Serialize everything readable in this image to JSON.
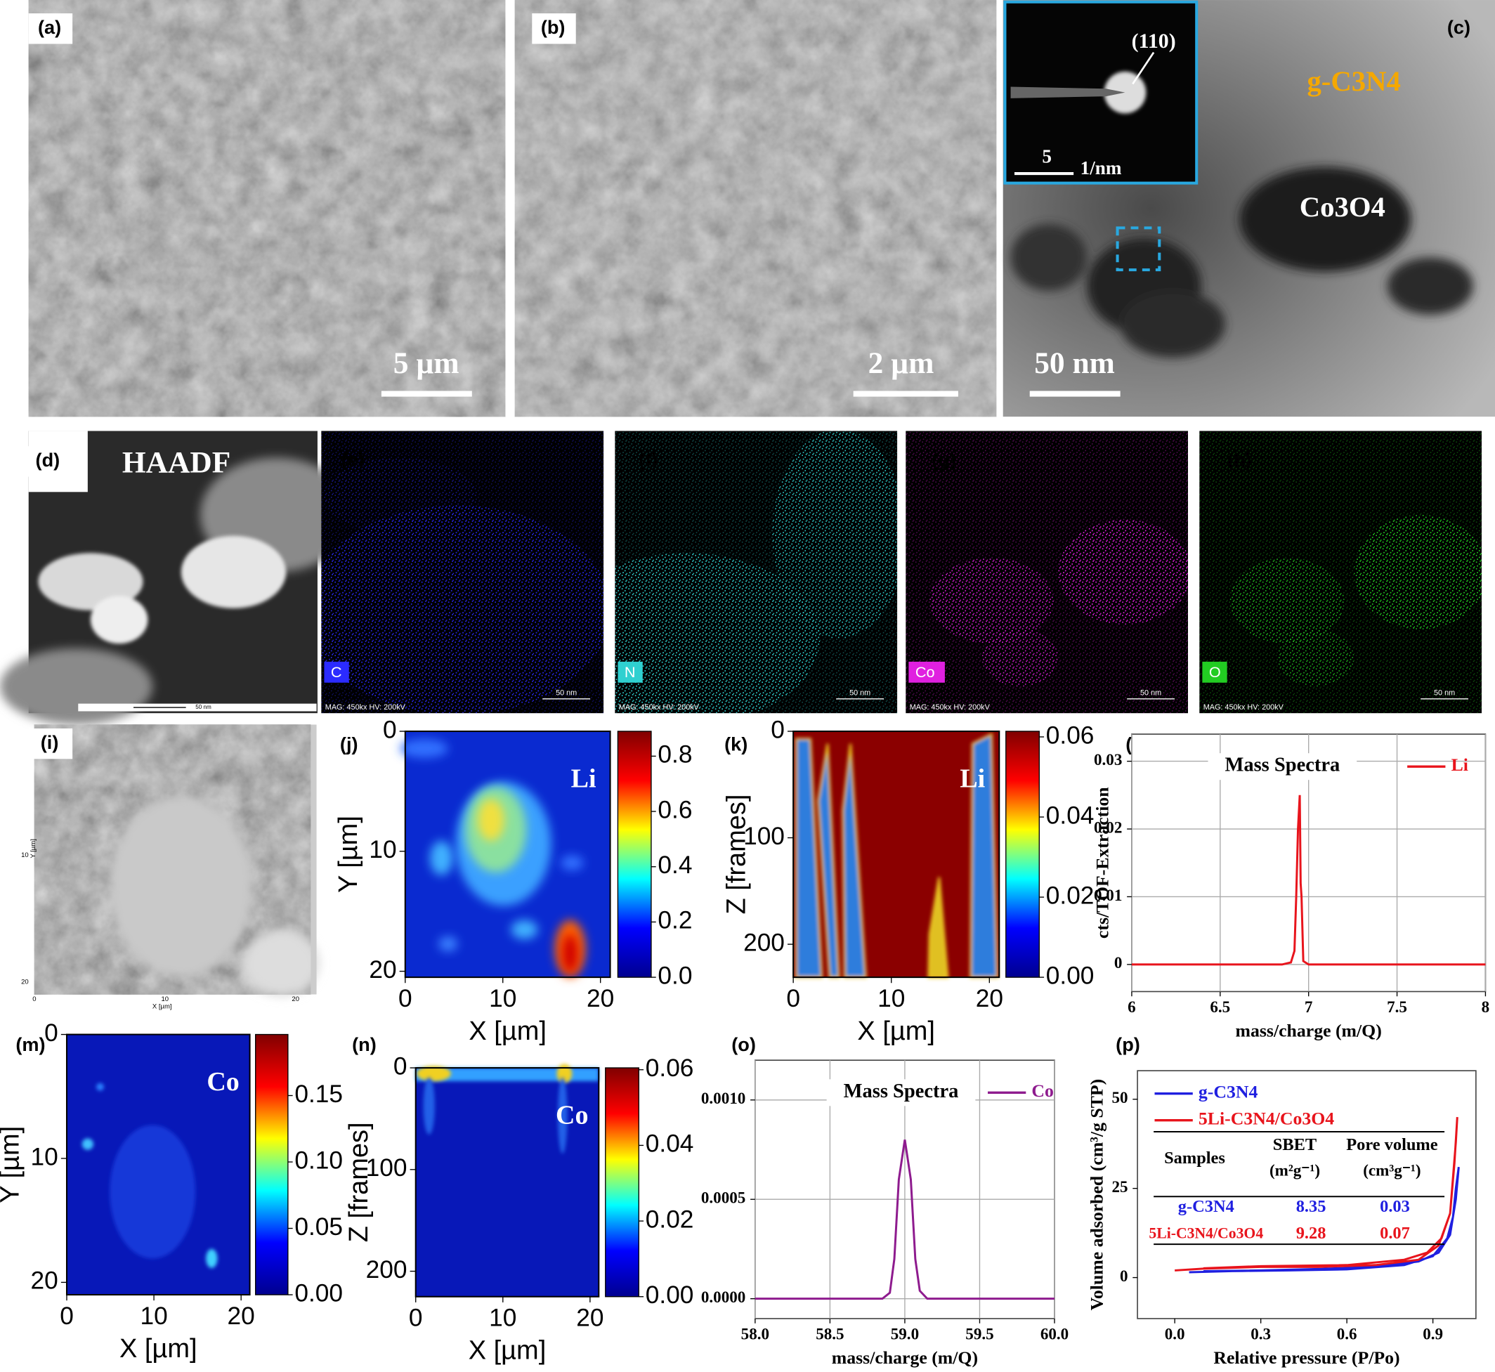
{
  "panel_labels": [
    "(a)",
    "(b)",
    "(c)",
    "(d)",
    "(e)",
    "(f)",
    "(g)",
    "(h)",
    "(i)",
    "(j)",
    "(k)",
    "(l)",
    "(m)",
    "(n)",
    "(o)",
    "(p)"
  ],
  "micrographs": {
    "a": {
      "scale_bar": "5 µm"
    },
    "b": {
      "scale_bar": "2 µm"
    },
    "c": {
      "scale_bar": "50 nm",
      "inset_scale": "5",
      "inset_unit": "1/nm",
      "spot": "(110)",
      "support": "g-C3N4",
      "particles": "Co3O4"
    },
    "d": {
      "title": "HAADF",
      "scale_bar": "50 nm"
    },
    "eds": [
      {
        "element": "C",
        "color": "#2b2bff",
        "info": "MAG: 450kx HV: 200kV",
        "scale_bar": "50 nm"
      },
      {
        "element": "N",
        "color": "#2fd0d0",
        "info": "MAG: 450kx HV: 200kV",
        "scale_bar": "50 nm"
      },
      {
        "element": "Co",
        "color": "#e020e0",
        "info": "MAG: 450kx HV: 200kV",
        "scale_bar": "50 nm"
      },
      {
        "element": "O",
        "color": "#22cc22",
        "info": "MAG: 450kx HV: 200kV",
        "scale_bar": "50 nm"
      }
    ],
    "i": {
      "xlabel": "X [µm]",
      "ylabel": "Y [µm]",
      "xticks": [
        "0",
        "10",
        "20"
      ],
      "yticks": [
        "10",
        "20"
      ]
    }
  },
  "chart_data": [
    {
      "type": "heatmap",
      "label": "Li",
      "xlabel": "X [µm]",
      "ylabel": "Y [µm]",
      "y_inverted": true,
      "xlim": [
        0,
        21
      ],
      "xticks": [
        0,
        10,
        20
      ],
      "ylim": [
        0,
        20.5
      ],
      "yticks": [
        0,
        10,
        20
      ],
      "clim": [
        0,
        0.89
      ],
      "cticks": [
        {
          "value": 0,
          "label": "0.0"
        },
        {
          "value": 0.2,
          "label": "0.2"
        },
        {
          "value": 0.4,
          "label": "0.4"
        },
        {
          "value": 0.6,
          "label": "0.6"
        },
        {
          "value": 0.8,
          "label": "0.8"
        }
      ],
      "colormap": [
        "#00008f",
        "#0000ff",
        "#00ffff",
        "#ffff00",
        "#ff0000",
        "#800000"
      ]
    },
    {
      "type": "heatmap",
      "label": "Li",
      "xlabel": "X [µm]",
      "ylabel": "Z [frames]",
      "y_inverted": true,
      "xlim": [
        0,
        21
      ],
      "xticks": [
        0,
        10,
        20
      ],
      "ylim": [
        0,
        231
      ],
      "yticks": [
        0,
        100,
        200
      ],
      "clim": [
        0,
        0.0614
      ],
      "cticks": [
        {
          "value": 0,
          "label": "0.00"
        },
        {
          "value": 0.02,
          "label": "0.02"
        },
        {
          "value": 0.04,
          "label": "0.04"
        },
        {
          "value": 0.06,
          "label": "0.06"
        }
      ],
      "colormap": [
        "#00008f",
        "#0000ff",
        "#00ffff",
        "#ffff00",
        "#ff0000",
        "#800000"
      ]
    },
    {
      "type": "line",
      "title": "Mass Spectra",
      "xlabel": "mass/charge (m/Q)",
      "ylabel": "cts/TOF-Extraction",
      "xlim": [
        6,
        8
      ],
      "xticks": [
        6,
        6.5,
        7,
        7.5,
        8
      ],
      "ylim": [
        -0.004,
        0.034
      ],
      "yticks": [
        0,
        0.01,
        0.02,
        0.03
      ],
      "grid": true,
      "legend": "top-right",
      "x": [
        6,
        6.5,
        6.85,
        6.9,
        6.92,
        6.93,
        6.94,
        6.95,
        6.955,
        6.96,
        6.97,
        7,
        7.5,
        8
      ],
      "series": [
        {
          "name": "Li",
          "color": "#e8141c",
          "values": [
            0,
            0,
            0,
            0.0003,
            0.002,
            0.01,
            0.02,
            0.025,
            0.012,
            0.01,
            0.0005,
            0,
            0,
            0
          ]
        }
      ]
    },
    {
      "type": "heatmap",
      "label": "Co",
      "xlabel": "X [µm]",
      "ylabel": "Y [µm]",
      "y_inverted": true,
      "xlim": [
        0,
        21
      ],
      "xticks": [
        0,
        10,
        20
      ],
      "ylim": [
        0,
        21
      ],
      "yticks": [
        0,
        10,
        20
      ],
      "clim": [
        0,
        0.196
      ],
      "cticks": [
        {
          "value": 0,
          "label": "0.00"
        },
        {
          "value": 0.05,
          "label": "0.05"
        },
        {
          "value": 0.1,
          "label": "0.10"
        },
        {
          "value": 0.15,
          "label": "0.15"
        }
      ],
      "colormap": [
        "#00008f",
        "#0000ff",
        "#00ffff",
        "#ffff00",
        "#ff0000",
        "#800000"
      ]
    },
    {
      "type": "heatmap",
      "label": "Co",
      "xlabel": "X [µm]",
      "ylabel": "Z [frames]",
      "y_inverted": true,
      "xlim": [
        0,
        21
      ],
      "xticks": [
        0,
        10,
        20
      ],
      "ylim": [
        0,
        225
      ],
      "yticks": [
        0,
        100,
        200
      ],
      "clim": [
        0,
        0.0605
      ],
      "cticks": [
        {
          "value": 0,
          "label": "0.00"
        },
        {
          "value": 0.02,
          "label": "0.02"
        },
        {
          "value": 0.04,
          "label": "0.04"
        },
        {
          "value": 0.06,
          "label": "0.06"
        }
      ],
      "colormap": [
        "#00008f",
        "#0000ff",
        "#00ffff",
        "#ffff00",
        "#ff0000",
        "#800000"
      ]
    },
    {
      "type": "line",
      "title": "Mass Spectra",
      "xlabel": "mass/charge (m/Q)",
      "xlim": [
        58,
        60
      ],
      "xticks": [
        {
          "value": 58,
          "label": "58.0"
        },
        {
          "value": 58.5,
          "label": "58.5"
        },
        {
          "value": 59,
          "label": "59.0"
        },
        {
          "value": 59.5,
          "label": "59.5"
        },
        {
          "value": 60,
          "label": "60.0"
        }
      ],
      "ylim": [
        -0.0001,
        0.0012
      ],
      "yticks": [
        {
          "value": 0,
          "label": "0.0000"
        },
        {
          "value": 0.0005,
          "label": "0.0005"
        },
        {
          "value": 0.001,
          "label": "0.0010"
        }
      ],
      "grid": true,
      "legend": "top-right",
      "x": [
        58,
        58.5,
        58.85,
        58.9,
        58.93,
        58.96,
        59,
        59.04,
        59.07,
        59.1,
        59.15,
        59.5,
        60
      ],
      "series": [
        {
          "name": "Co",
          "color": "#8e1b8e",
          "values": [
            0,
            0,
            0,
            3e-05,
            0.0002,
            0.0006,
            0.0008,
            0.0006,
            0.0002,
            4e-05,
            0,
            0,
            0
          ]
        }
      ]
    },
    {
      "type": "line",
      "xlabel": "Relative pressure (P/Po)",
      "ylabel": "Volume adsorbed (cm³/g STP)",
      "xlim": [
        -0.13,
        1.05
      ],
      "xticks": [
        {
          "value": 0,
          "label": "0.0"
        },
        {
          "value": 0.3,
          "label": "0.3"
        },
        {
          "value": 0.6,
          "label": "0.6"
        },
        {
          "value": 0.9,
          "label": "0.9"
        }
      ],
      "ylim": [
        -11.5,
        58
      ],
      "yticks": [
        0,
        25,
        50
      ],
      "grid": false,
      "legend": "top-left",
      "series": [
        {
          "name": "g-C3N4",
          "color": "#1f1fe0",
          "x": [
            0.05,
            0.2,
            0.4,
            0.6,
            0.8,
            0.9,
            0.95,
            0.97,
            0.98,
            0.99,
            0.98,
            0.96,
            0.92,
            0.85,
            0.7,
            0.5,
            0.3,
            0.1
          ],
          "values": [
            1.5,
            1.8,
            2,
            2.3,
            3.5,
            6,
            11,
            17,
            25,
            31,
            22,
            12,
            7,
            4.5,
            3,
            2.4,
            2,
            1.8
          ]
        },
        {
          "name": "5Li-C3N4/Co3O4",
          "color": "#e8141c",
          "x": [
            0,
            0.1,
            0.3,
            0.5,
            0.7,
            0.85,
            0.92,
            0.96,
            0.975,
            0.985,
            0.98,
            0.96,
            0.93,
            0.88,
            0.8,
            0.6,
            0.3,
            0.1
          ],
          "values": [
            2,
            2.5,
            3,
            3,
            3.5,
            5,
            9,
            18,
            32,
            45,
            38,
            18,
            11,
            7,
            5,
            3.5,
            3.2,
            2.6
          ]
        }
      ],
      "table": {
        "header": [
          "Samples",
          "SBET",
          "Pore volume"
        ],
        "units": [
          "(m²g⁻¹)",
          "(cm³g⁻¹)"
        ],
        "rows": [
          [
            "g-C3N4",
            8.35,
            0.03
          ],
          [
            "5Li-C3N4/Co3O4",
            9.28,
            0.07
          ]
        ]
      }
    }
  ]
}
